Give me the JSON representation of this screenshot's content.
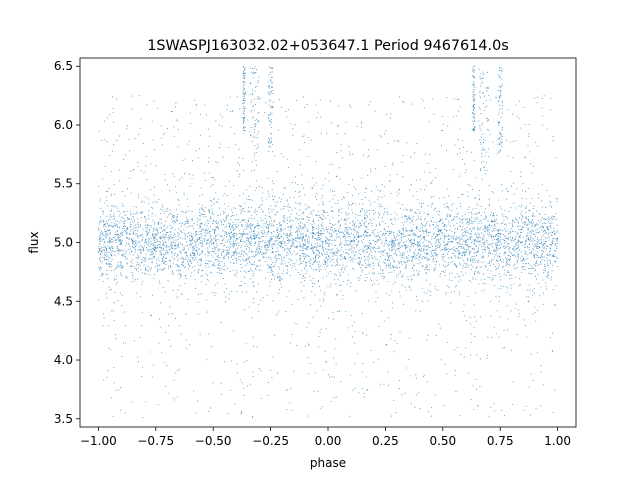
{
  "chart_data": {
    "type": "scatter",
    "title": "1SWASPJ163032.02+053647.1 Period 9467614.0s",
    "xlabel": "phase",
    "ylabel": "flux",
    "xlim": [
      -1.08,
      1.08
    ],
    "ylim": [
      3.43,
      6.57
    ],
    "x_ticks": [
      -1.0,
      -0.75,
      -0.5,
      -0.25,
      0.0,
      0.25,
      0.5,
      0.75,
      1.0
    ],
    "x_tick_labels": [
      "−1.00",
      "−0.75",
      "−0.50",
      "−0.25",
      "0.00",
      "0.25",
      "0.50",
      "0.75",
      "1.00"
    ],
    "y_ticks": [
      3.5,
      4.0,
      4.5,
      5.0,
      5.5,
      6.0,
      6.5
    ],
    "y_tick_labels": [
      "3.5",
      "4.0",
      "4.5",
      "5.0",
      "5.5",
      "6.0",
      "6.5"
    ],
    "grid": false,
    "legend": "none",
    "point_color": "#1f77b4",
    "baseline_flux": 5.0,
    "core_scatter_range": [
      4.65,
      5.35
    ],
    "phase_coverage": [
      -1.0,
      1.0
    ],
    "high_outlier_clusters": [
      {
        "phase_range": [
          -0.37,
          -0.36
        ],
        "flux_range": [
          5.95,
          6.5
        ]
      },
      {
        "phase_range": [
          -0.34,
          -0.3
        ],
        "flux_range": [
          5.6,
          6.5
        ]
      },
      {
        "phase_range": [
          -0.26,
          -0.24
        ],
        "flux_range": [
          5.75,
          6.5
        ]
      },
      {
        "phase_range": [
          0.63,
          0.64
        ],
        "flux_range": [
          5.95,
          6.5
        ]
      },
      {
        "phase_range": [
          0.66,
          0.7
        ],
        "flux_range": [
          5.6,
          6.5
        ]
      },
      {
        "phase_range": [
          0.74,
          0.76
        ],
        "flux_range": [
          5.75,
          6.5
        ]
      }
    ]
  }
}
